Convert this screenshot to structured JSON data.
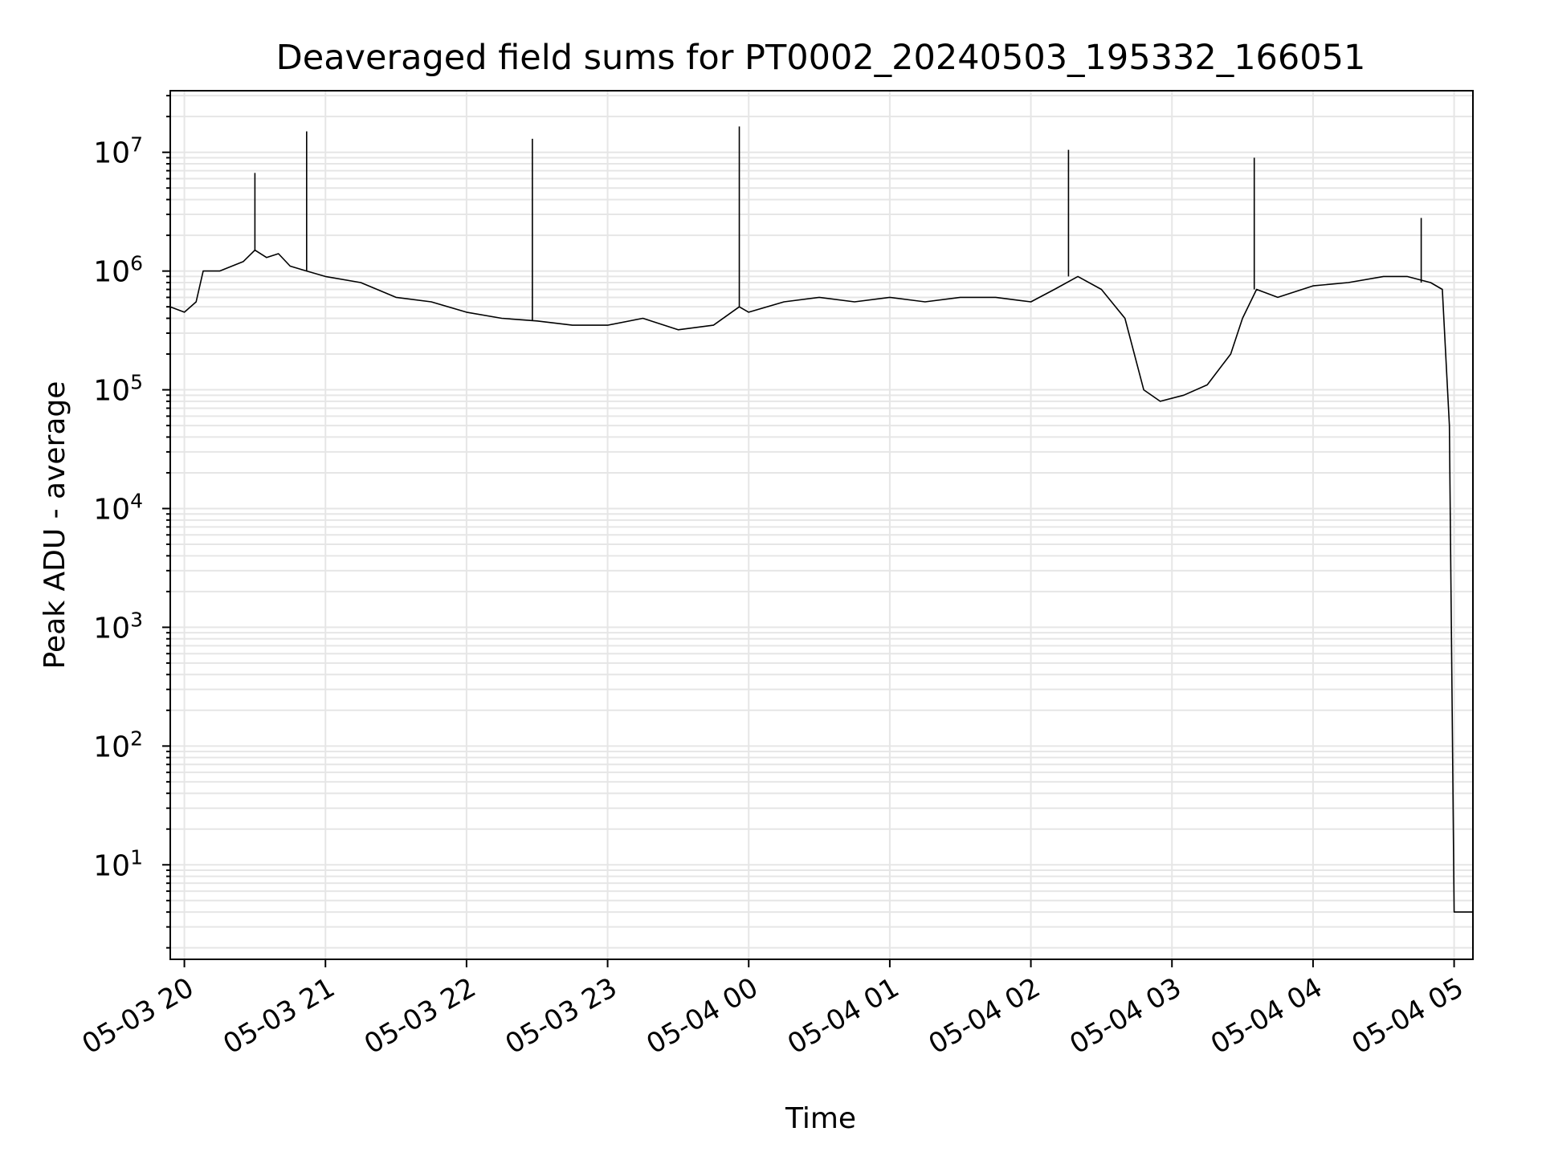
{
  "chart_data": {
    "type": "line",
    "title": "Deaveraged field sums for PT0002_20240503_195332_166051",
    "xlabel": "Time",
    "ylabel": "Peak ADU - average",
    "yscale": "log",
    "ylim": [
      1.6,
      33000000
    ],
    "xlim": [
      "2024-05-03 19:54",
      "2024-05-04 05:08"
    ],
    "grid": true,
    "line_color": "#000000",
    "x_tick_labels": [
      "05-03 20",
      "05-03 21",
      "05-03 22",
      "05-03 23",
      "05-04 00",
      "05-04 01",
      "05-04 02",
      "05-04 03",
      "05-04 04",
      "05-04 05"
    ],
    "x_ticks": [
      "2024-05-03 20:00",
      "2024-05-03 21:00",
      "2024-05-03 22:00",
      "2024-05-03 23:00",
      "2024-05-04 00:00",
      "2024-05-04 01:00",
      "2024-05-04 02:00",
      "2024-05-04 03:00",
      "2024-05-04 04:00",
      "2024-05-04 05:00"
    ],
    "y_tick_labels": [
      {
        "base": "10",
        "exp": "1",
        "value": 10
      },
      {
        "base": "10",
        "exp": "2",
        "value": 100
      },
      {
        "base": "10",
        "exp": "3",
        "value": 1000
      },
      {
        "base": "10",
        "exp": "4",
        "value": 10000
      },
      {
        "base": "10",
        "exp": "5",
        "value": 100000
      },
      {
        "base": "10",
        "exp": "6",
        "value": 1000000
      },
      {
        "base": "10",
        "exp": "7",
        "value": 10000000
      }
    ],
    "series": [
      {
        "x": [
          "2024-05-03 19:54",
          "2024-05-03 20:00",
          "2024-05-03 20:05",
          "2024-05-03 20:08",
          "2024-05-03 20:15",
          "2024-05-03 20:25",
          "2024-05-03 20:30",
          "2024-05-03 20:35",
          "2024-05-03 20:40",
          "2024-05-03 20:45",
          "2024-05-03 20:52",
          "2024-05-03 21:00",
          "2024-05-03 21:15",
          "2024-05-03 21:30",
          "2024-05-03 21:45",
          "2024-05-03 22:00",
          "2024-05-03 22:15",
          "2024-05-03 22:30",
          "2024-05-03 22:45",
          "2024-05-03 23:00",
          "2024-05-03 23:15",
          "2024-05-03 23:30",
          "2024-05-03 23:45",
          "2024-05-03 23:56",
          "2024-05-04 00:00",
          "2024-05-04 00:15",
          "2024-05-04 00:30",
          "2024-05-04 00:45",
          "2024-05-04 01:00",
          "2024-05-04 01:15",
          "2024-05-04 01:30",
          "2024-05-04 01:45",
          "2024-05-04 02:00",
          "2024-05-04 02:10",
          "2024-05-04 02:20",
          "2024-05-04 02:30",
          "2024-05-04 02:40",
          "2024-05-04 02:48",
          "2024-05-04 02:55",
          "2024-05-04 03:05",
          "2024-05-04 03:15",
          "2024-05-04 03:25",
          "2024-05-04 03:30",
          "2024-05-04 03:36",
          "2024-05-04 03:45",
          "2024-05-04 04:00",
          "2024-05-04 04:15",
          "2024-05-04 04:30",
          "2024-05-04 04:40",
          "2024-05-04 04:50",
          "2024-05-04 04:55",
          "2024-05-04 04:58",
          "2024-05-04 05:00",
          "2024-05-04 05:05",
          "2024-05-04 05:08"
        ],
        "y": [
          500000,
          450000,
          550000,
          1000000,
          1000000,
          1200000,
          1500000,
          1300000,
          1400000,
          1100000,
          1000000,
          900000,
          800000,
          600000,
          550000,
          450000,
          400000,
          380000,
          350000,
          350000,
          400000,
          320000,
          350000,
          500000,
          450000,
          550000,
          600000,
          550000,
          600000,
          550000,
          600000,
          600000,
          550000,
          700000,
          900000,
          700000,
          400000,
          100000,
          80000,
          90000,
          110000,
          200000,
          400000,
          700000,
          600000,
          750000,
          800000,
          900000,
          900000,
          800000,
          700000,
          50000,
          4,
          4,
          4
        ]
      }
    ],
    "spikes": [
      {
        "x": "2024-05-03 20:30",
        "y": 6700000
      },
      {
        "x": "2024-05-03 20:52",
        "y": 15000000
      },
      {
        "x": "2024-05-03 22:28",
        "y": 13000000
      },
      {
        "x": "2024-05-03 23:56",
        "y": 16500000
      },
      {
        "x": "2024-05-04 02:16",
        "y": 10500000
      },
      {
        "x": "2024-05-04 03:35",
        "y": 9000000
      },
      {
        "x": "2024-05-04 04:46",
        "y": 2800000
      }
    ]
  }
}
